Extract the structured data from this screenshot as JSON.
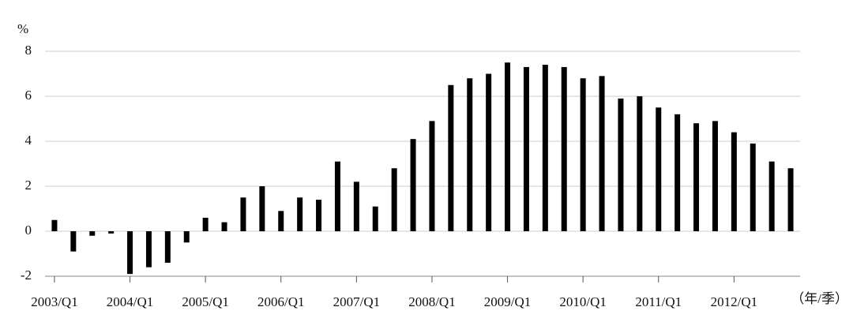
{
  "chart_data": {
    "type": "bar",
    "y_unit": "%",
    "x_unit": "（年/季）",
    "categories": [
      "2003/Q1",
      null,
      null,
      null,
      "2004/Q1",
      null,
      null,
      null,
      "2005/Q1",
      null,
      null,
      null,
      "2006/Q1",
      null,
      null,
      null,
      "2007/Q1",
      null,
      null,
      null,
      "2008/Q1",
      null,
      null,
      null,
      "2009/Q1",
      null,
      null,
      null,
      "2010/Q1",
      null,
      null,
      null,
      "2011/Q1",
      null,
      null,
      null,
      "2012/Q1",
      null,
      null,
      null
    ],
    "values": [
      0.5,
      -0.9,
      -0.2,
      -0.1,
      -1.9,
      -1.6,
      -1.4,
      -0.5,
      0.6,
      0.4,
      1.5,
      2.0,
      0.9,
      1.5,
      1.4,
      3.1,
      2.2,
      1.1,
      2.8,
      4.1,
      4.9,
      6.5,
      6.8,
      7.0,
      7.5,
      7.3,
      7.4,
      7.3,
      6.8,
      6.9,
      5.9,
      6.0,
      5.5,
      5.2,
      4.8,
      4.9,
      4.4,
      3.9,
      3.1,
      2.8
    ],
    "color": "#000000",
    "ylim": [
      -2,
      8
    ],
    "yticks": [
      -2,
      0,
      2,
      4,
      6,
      8
    ],
    "grid": true
  }
}
